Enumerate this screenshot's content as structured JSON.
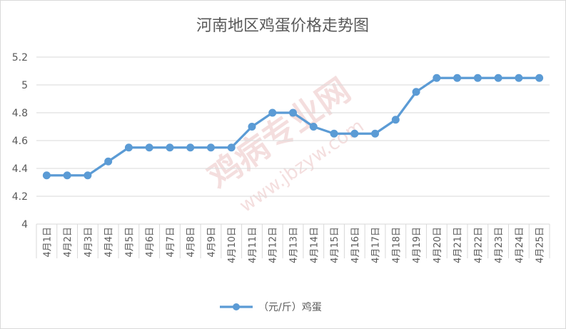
{
  "chart_data": {
    "type": "line",
    "title": "河南地区鸡蛋价格走势图",
    "xlabel": "",
    "ylabel": "",
    "categories": [
      "4月1日",
      "4月2日",
      "4月3日",
      "4月4日",
      "4月5日",
      "4月6日",
      "4月7日",
      "4月8日",
      "4月9日",
      "4月10日",
      "4月11日",
      "4月12日",
      "4月13日",
      "4月14日",
      "4月15日",
      "4月16日",
      "4月17日",
      "4月18日",
      "4月19日",
      "4月20日",
      "4月21日",
      "4月22日",
      "4月23日",
      "4月24日",
      "4月25日"
    ],
    "series": [
      {
        "name": "（元/斤）鸡蛋",
        "color": "#5b9bd5",
        "values": [
          4.35,
          4.35,
          4.35,
          4.45,
          4.55,
          4.55,
          4.55,
          4.55,
          4.55,
          4.55,
          4.7,
          4.8,
          4.8,
          4.7,
          4.65,
          4.65,
          4.65,
          4.75,
          4.95,
          5.05,
          5.05,
          5.05,
          5.05,
          5.05,
          5.05
        ]
      }
    ],
    "yticks": [
      "4",
      "4.2",
      "4.4",
      "4.6",
      "4.8",
      "5",
      "5.2"
    ],
    "ylim": [
      4,
      5.2
    ],
    "grid": true,
    "legend": "bottom"
  },
  "watermark": {
    "text": "鸡病专业网",
    "url": "www.jbzyw.com"
  }
}
